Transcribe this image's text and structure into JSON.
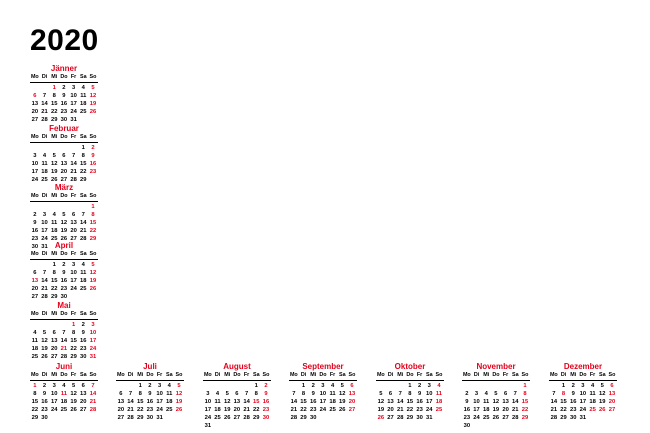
{
  "year": "2020",
  "weekdays": [
    "Mo",
    "Di",
    "Mi",
    "Do",
    "Fr",
    "Sa",
    "So"
  ],
  "holiday_color": "#e4001b",
  "months": [
    {
      "name": "Jänner",
      "offset": 2,
      "days": 31,
      "holidays": [
        1,
        6
      ]
    },
    {
      "name": "Februar",
      "offset": 5,
      "days": 29,
      "holidays": []
    },
    {
      "name": "März",
      "offset": 6,
      "days": 31,
      "holidays": []
    },
    {
      "name": "April",
      "offset": 2,
      "days": 30,
      "holidays": [
        13
      ]
    },
    {
      "name": "Mai",
      "offset": 4,
      "days": 31,
      "holidays": [
        1,
        21
      ]
    },
    {
      "name": "Juni",
      "offset": 0,
      "days": 30,
      "holidays": [
        1,
        11
      ]
    },
    {
      "name": "Juli",
      "offset": 2,
      "days": 31,
      "holidays": []
    },
    {
      "name": "August",
      "offset": 5,
      "days": 31,
      "holidays": [
        15
      ]
    },
    {
      "name": "September",
      "offset": 1,
      "days": 30,
      "holidays": []
    },
    {
      "name": "Oktober",
      "offset": 3,
      "days": 31,
      "holidays": [
        26
      ]
    },
    {
      "name": "November",
      "offset": 6,
      "days": 30,
      "holidays": []
    },
    {
      "name": "Dezember",
      "offset": 1,
      "days": 31,
      "holidays": [
        8,
        25,
        26
      ]
    }
  ]
}
